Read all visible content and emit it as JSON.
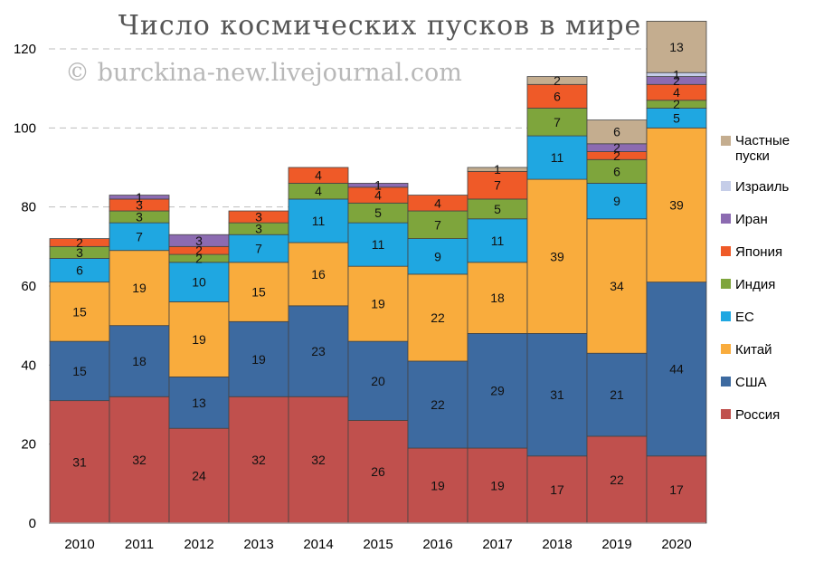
{
  "chart_data": {
    "type": "bar",
    "stacked": true,
    "title": "Число космических пусков в мире",
    "watermark": "© burckina-new.livejournal.com",
    "xlabel": "",
    "ylabel": "",
    "ylim": [
      0,
      120
    ],
    "yticks": [
      0,
      20,
      40,
      60,
      80,
      100,
      120
    ],
    "grid": true,
    "legend_position": "right",
    "categories": [
      "2010",
      "2011",
      "2012",
      "2013",
      "2014",
      "2015",
      "2016",
      "2017",
      "2018",
      "2019",
      "2020"
    ],
    "series": [
      {
        "name": "Россия",
        "color": "#c0504d",
        "values": [
          31,
          32,
          24,
          32,
          32,
          26,
          19,
          19,
          17,
          22,
          17
        ]
      },
      {
        "name": "США",
        "color": "#3d6aa0",
        "values": [
          15,
          18,
          13,
          19,
          23,
          20,
          22,
          29,
          31,
          21,
          44
        ]
      },
      {
        "name": "Китай",
        "color": "#f9ac3d",
        "values": [
          15,
          19,
          19,
          15,
          16,
          19,
          22,
          18,
          39,
          34,
          39
        ]
      },
      {
        "name": "ЕС",
        "color": "#1fa7e1",
        "values": [
          6,
          7,
          10,
          7,
          11,
          11,
          9,
          11,
          11,
          9,
          5
        ]
      },
      {
        "name": "Индия",
        "color": "#7ea53c",
        "values": [
          3,
          3,
          2,
          3,
          4,
          5,
          7,
          5,
          7,
          6,
          2
        ]
      },
      {
        "name": "Япония",
        "color": "#ef5a28",
        "values": [
          2,
          3,
          2,
          3,
          4,
          4,
          4,
          7,
          6,
          2,
          4
        ]
      },
      {
        "name": "Иран",
        "color": "#8c6bb1",
        "values": [
          0,
          1,
          3,
          0,
          0,
          1,
          0,
          0,
          0,
          2,
          2
        ]
      },
      {
        "name": "Израиль",
        "color": "#c5cde8",
        "values": [
          0,
          0,
          0,
          0,
          0,
          0,
          0,
          0,
          0,
          0,
          1
        ]
      },
      {
        "name": "Частные пуски",
        "color": "#c4ad8f",
        "values": [
          0,
          0,
          0,
          0,
          0,
          0,
          0,
          1,
          2,
          6,
          13
        ]
      }
    ]
  }
}
